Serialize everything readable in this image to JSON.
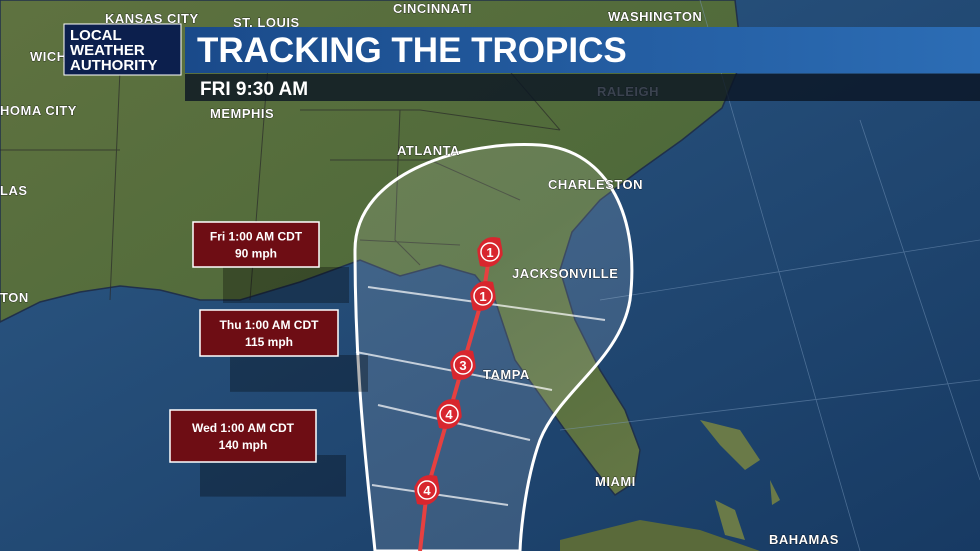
{
  "logo": {
    "lines": [
      "LOCAL",
      "WEATHER",
      "AUTHORITY"
    ]
  },
  "header": {
    "title": "TRACKING THE TROPICS",
    "time": "FRI 9:30 AM"
  },
  "cities": [
    "KANSAS CITY",
    "ST. LOUIS",
    "CINCINNATI",
    "WASHINGTON",
    "WICH",
    "HOMA CITY",
    "MEMPHIS",
    "RALEIGH",
    "ATLANTA",
    "CHARLESTON",
    "LAS",
    "JACKSONVILLE",
    "TON",
    "TAMPA",
    "MIAMI",
    "BAHAMAS"
  ],
  "forecast_points": [
    {
      "time": "Fri 1:00 AM CDT",
      "wind": "90 mph"
    },
    {
      "time": "Thu 1:00 AM CDT",
      "wind": "115 mph"
    },
    {
      "time": "Wed 1:00 AM CDT",
      "wind": "140 mph"
    }
  ],
  "storm_markers": [
    1,
    1,
    3,
    4,
    4
  ]
}
